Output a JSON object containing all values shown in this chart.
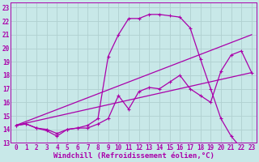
{
  "background_color": "#c8e8e8",
  "grid_color": "#b0d0d0",
  "line_color": "#aa00aa",
  "xlabel": "Windchill (Refroidissement éolien,°C)",
  "xlim": [
    -0.5,
    23.5
  ],
  "ylim": [
    13,
    23.4
  ],
  "xticks": [
    0,
    1,
    2,
    3,
    4,
    5,
    6,
    7,
    8,
    9,
    10,
    11,
    12,
    13,
    14,
    15,
    16,
    17,
    18,
    19,
    20,
    21,
    22,
    23
  ],
  "yticks": [
    13,
    14,
    15,
    16,
    17,
    18,
    19,
    20,
    21,
    22,
    23
  ],
  "curve_upper_x": [
    0,
    1,
    2,
    3,
    4,
    5,
    6,
    7,
    8,
    9,
    10,
    11,
    12,
    13,
    14,
    15,
    16,
    17,
    18,
    19,
    20,
    21,
    22,
    23
  ],
  "curve_upper_y": [
    14.3,
    14.4,
    14.1,
    14.0,
    13.7,
    14.0,
    14.1,
    14.3,
    14.8,
    19.4,
    21.0,
    22.2,
    22.2,
    22.5,
    22.5,
    22.4,
    22.3,
    21.5,
    19.2,
    17.0,
    14.8,
    13.5,
    12.6,
    12.2
  ],
  "curve_lower_x": [
    0,
    1,
    2,
    3,
    4,
    5,
    6,
    7,
    8,
    9,
    10,
    11,
    12,
    13,
    14,
    15,
    16,
    17,
    18,
    19,
    20,
    21,
    22,
    23
  ],
  "curve_lower_y": [
    14.3,
    14.4,
    14.1,
    13.9,
    13.5,
    14.0,
    14.1,
    14.1,
    14.4,
    14.8,
    16.5,
    15.5,
    16.8,
    17.1,
    17.0,
    17.5,
    18.0,
    17.0,
    16.5,
    16.0,
    18.3,
    19.5,
    19.8,
    18.2
  ],
  "line1_x": [
    0,
    23
  ],
  "line1_y": [
    14.3,
    18.2
  ],
  "line2_x": [
    0,
    23
  ],
  "line2_y": [
    14.3,
    21.0
  ],
  "marker": "+",
  "markersize": 3,
  "linewidth": 0.9,
  "tick_fontsize": 5.5,
  "label_fontsize": 6.5
}
